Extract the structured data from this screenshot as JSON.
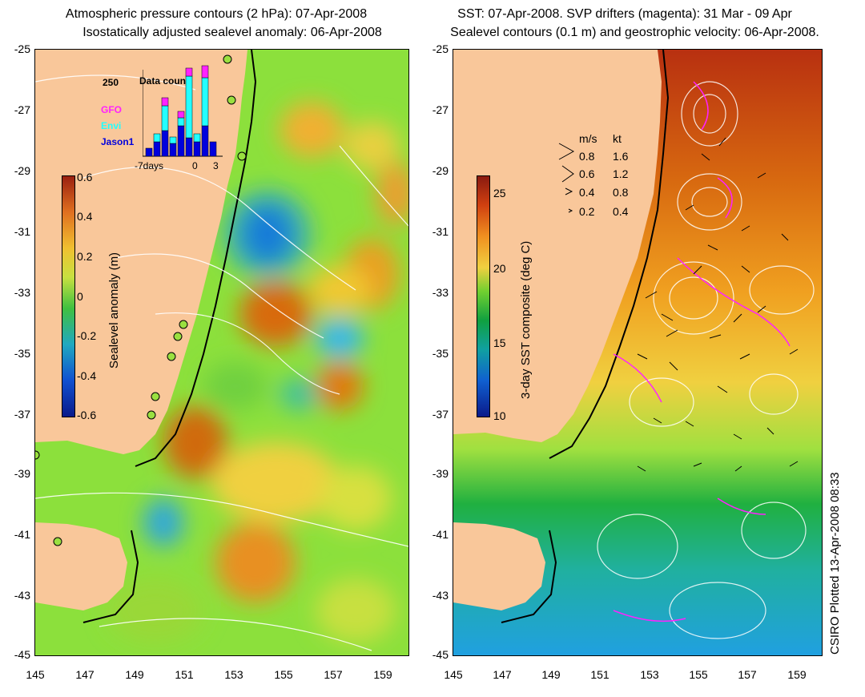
{
  "left_panel": {
    "title_line1": "Atmospheric pressure contours (2 hPa): 07-Apr-2008",
    "title_line2": "Isostatically adjusted sealevel anomaly: 06-Apr-2008",
    "colorbar": {
      "title": "Sealevel anomaly (m)",
      "labels": [
        "0.6",
        "0.4",
        "0.2",
        "0",
        "-0.2",
        "-0.4",
        "-0.6"
      ],
      "values": [
        0.6,
        0.4,
        0.2,
        0,
        -0.2,
        -0.4,
        -0.6
      ]
    },
    "inset": {
      "title": "Data count",
      "ymax_label": "250",
      "x_labels": [
        "-7days",
        "0",
        "3"
      ],
      "legend": [
        {
          "name": "GFO",
          "color": "#ff22ff"
        },
        {
          "name": "Envi",
          "color": "#22ffff"
        },
        {
          "name": "Jason1",
          "color": "#0000dd"
        }
      ]
    }
  },
  "right_panel": {
    "title_line1": "SST: 07-Apr-2008. SVP drifters (magenta): 31 Mar - 09 Apr",
    "title_line2": "Sealevel contours (0.1 m) and geostrophic velocity: 06-Apr-2008.",
    "colorbar": {
      "title": "3-day SST composite (deg C)",
      "labels": [
        "25",
        "20",
        "15",
        "10"
      ],
      "values": [
        25,
        20,
        15,
        10
      ]
    },
    "velocity_legend": {
      "header_ms": "m/s",
      "header_kt": "kt",
      "rows": [
        {
          "ms": "0.8",
          "kt": "1.6"
        },
        {
          "ms": "0.6",
          "kt": "1.2"
        },
        {
          "ms": "0.4",
          "kt": "0.8"
        },
        {
          "ms": "0.2",
          "kt": "0.4"
        }
      ]
    }
  },
  "axes": {
    "lat_labels": [
      "-25",
      "-27",
      "-29",
      "-31",
      "-33",
      "-35",
      "-37",
      "-39",
      "-41",
      "-43",
      "-45"
    ],
    "lon_labels": [
      "145",
      "147",
      "149",
      "151",
      "153",
      "155",
      "157",
      "159"
    ]
  },
  "credit": "CSIRO Plotted 13-Apr-2008 08:33",
  "colors": {
    "land": "#f9c79a",
    "ocean_green": "#7ee03a",
    "sst_orange": "#e88a1a"
  }
}
